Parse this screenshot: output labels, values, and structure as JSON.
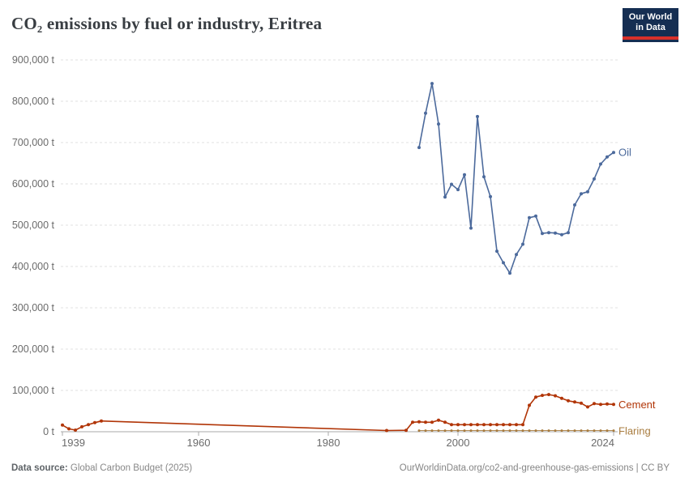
{
  "header": {
    "title": "CO₂ emissions by fuel or industry, Eritrea",
    "logo": {
      "line1": "Our World",
      "line2": "in Data"
    }
  },
  "chart_data": {
    "type": "line",
    "title": "CO₂ emissions by fuel or industry, Eritrea",
    "unit": "t",
    "xlim": [
      1939,
      2024
    ],
    "ylim": [
      0,
      900000
    ],
    "y_tick_step": 100000,
    "x_ticks": [
      1939,
      1960,
      1980,
      2000,
      2024
    ],
    "grid": "horizontal-dashed",
    "legend_position": "right-end-labels",
    "series": [
      {
        "name": "Oil",
        "color": "#4C6A9C",
        "points": [
          [
            1994,
            688000
          ],
          [
            1995,
            771000
          ],
          [
            1996,
            843000
          ],
          [
            1997,
            745000
          ],
          [
            1998,
            568000
          ],
          [
            1999,
            599000
          ],
          [
            2000,
            586000
          ],
          [
            2001,
            622000
          ],
          [
            2002,
            493000
          ],
          [
            2003,
            763000
          ],
          [
            2004,
            617000
          ],
          [
            2005,
            569000
          ],
          [
            2006,
            437000
          ],
          [
            2007,
            409000
          ],
          [
            2008,
            384000
          ],
          [
            2009,
            429000
          ],
          [
            2010,
            454000
          ],
          [
            2011,
            518000
          ],
          [
            2012,
            522000
          ],
          [
            2013,
            480000
          ],
          [
            2014,
            482000
          ],
          [
            2015,
            481000
          ],
          [
            2016,
            477000
          ],
          [
            2017,
            482000
          ],
          [
            2018,
            549000
          ],
          [
            2019,
            576000
          ],
          [
            2020,
            581000
          ],
          [
            2021,
            612000
          ],
          [
            2022,
            648000
          ],
          [
            2023,
            665000
          ],
          [
            2024,
            676000
          ]
        ]
      },
      {
        "name": "Cement",
        "color": "#B13507",
        "points": [
          [
            1939,
            16000
          ],
          [
            1940,
            7000
          ],
          [
            1941,
            4000
          ],
          [
            1942,
            12000
          ],
          [
            1943,
            17000
          ],
          [
            1944,
            22000
          ],
          [
            1945,
            26000
          ],
          [
            1989,
            3000
          ],
          [
            1992,
            3500
          ],
          [
            1993,
            23000
          ],
          [
            1994,
            24000
          ],
          [
            1995,
            23000
          ],
          [
            1996,
            23000
          ],
          [
            1997,
            28000
          ],
          [
            1998,
            23000
          ],
          [
            1999,
            17000
          ],
          [
            2000,
            17000
          ],
          [
            2001,
            17000
          ],
          [
            2002,
            17000
          ],
          [
            2003,
            17000
          ],
          [
            2004,
            17000
          ],
          [
            2005,
            17000
          ],
          [
            2006,
            17000
          ],
          [
            2007,
            17000
          ],
          [
            2008,
            17000
          ],
          [
            2009,
            17000
          ],
          [
            2010,
            17000
          ],
          [
            2011,
            64000
          ],
          [
            2012,
            84000
          ],
          [
            2013,
            88000
          ],
          [
            2014,
            90000
          ],
          [
            2015,
            87000
          ],
          [
            2016,
            81000
          ],
          [
            2017,
            75000
          ],
          [
            2018,
            72000
          ],
          [
            2019,
            69000
          ],
          [
            2020,
            60000
          ],
          [
            2021,
            68000
          ],
          [
            2022,
            66000
          ],
          [
            2023,
            67000
          ],
          [
            2024,
            66000
          ]
        ]
      },
      {
        "name": "Flaring",
        "color": "#A87C3F",
        "points": [
          [
            1994,
            2800
          ],
          [
            1995,
            2800
          ],
          [
            1996,
            2800
          ],
          [
            1997,
            2800
          ],
          [
            1998,
            2800
          ],
          [
            1999,
            2800
          ],
          [
            2000,
            2800
          ],
          [
            2001,
            2800
          ],
          [
            2002,
            2800
          ],
          [
            2003,
            2800
          ],
          [
            2004,
            2800
          ],
          [
            2005,
            2800
          ],
          [
            2006,
            2800
          ],
          [
            2007,
            2800
          ],
          [
            2008,
            2800
          ],
          [
            2009,
            2800
          ],
          [
            2010,
            2800
          ],
          [
            2011,
            2800
          ],
          [
            2012,
            2800
          ],
          [
            2013,
            2800
          ],
          [
            2014,
            2800
          ],
          [
            2015,
            2800
          ],
          [
            2016,
            2800
          ],
          [
            2017,
            2800
          ],
          [
            2018,
            2800
          ],
          [
            2019,
            2800
          ],
          [
            2020,
            2800
          ],
          [
            2021,
            2800
          ],
          [
            2022,
            2800
          ],
          [
            2023,
            2800
          ],
          [
            2024,
            2800
          ]
        ]
      }
    ]
  },
  "footer": {
    "source_label": "Data source:",
    "source_value": "Global Carbon Budget (2025)",
    "credit": "OurWorldinData.org/co2-and-greenhouse-gas-emissions | CC BY"
  },
  "colors": {
    "logo_navy": "#152e52",
    "logo_red": "#d8302a",
    "axis_text": "#6b6b6b"
  }
}
